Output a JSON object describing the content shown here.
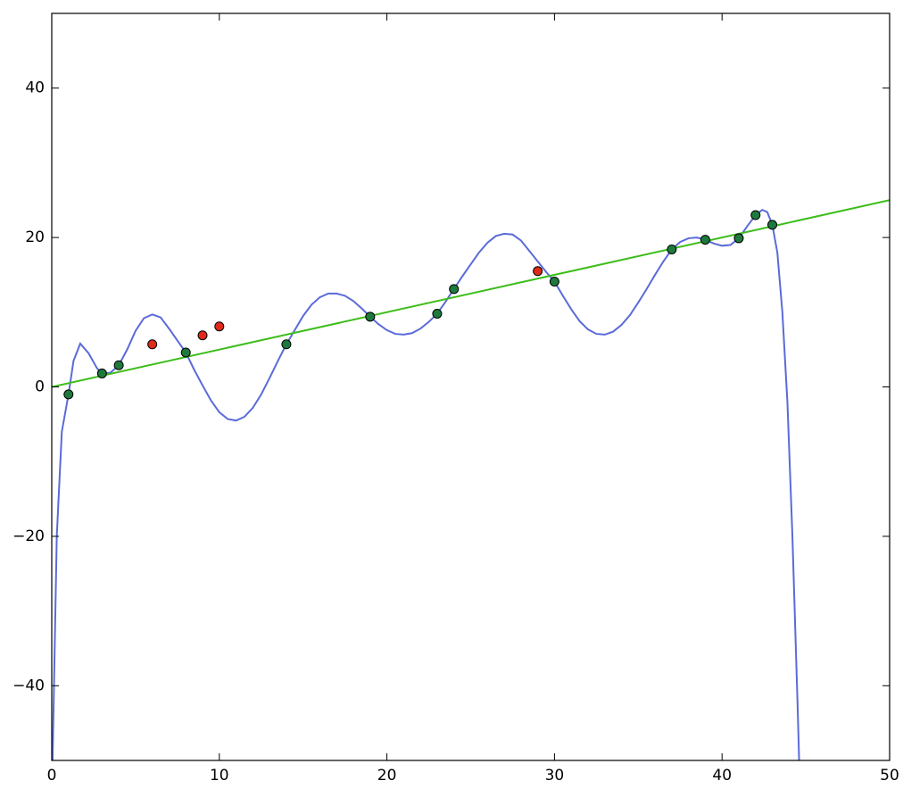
{
  "chart_data": {
    "type": "scatter",
    "xlim": [
      0,
      50
    ],
    "ylim": [
      -50,
      50
    ],
    "xticks": [
      0,
      10,
      20,
      30,
      40,
      50
    ],
    "yticks": [
      {
        "value": -40,
        "label": "−40"
      },
      {
        "value": -20,
        "label": "−20"
      },
      0,
      20,
      40
    ],
    "series": [
      {
        "type": "line",
        "color": "#5a6bd8",
        "x": [
          0.05,
          0.3,
          0.6,
          1,
          1.3,
          1.7,
          2.2,
          2.7,
          3,
          3.5,
          4,
          4.5,
          5,
          5.5,
          6,
          6.5,
          7,
          7.5,
          8,
          8.5,
          9,
          9.5,
          10,
          10.5,
          11,
          11.5,
          12,
          12.5,
          13,
          13.5,
          14,
          14.5,
          15,
          15.5,
          16,
          16.5,
          17,
          17.5,
          18,
          18.5,
          19,
          19.5,
          20,
          20.5,
          21,
          21.5,
          22,
          22.5,
          23,
          23.5,
          24,
          24.5,
          25,
          25.5,
          26,
          26.5,
          27,
          27.5,
          28,
          28.5,
          29,
          29.5,
          30,
          30.5,
          31,
          31.5,
          32,
          32.5,
          33,
          33.5,
          34,
          34.5,
          35,
          35.5,
          36,
          36.5,
          37,
          37.5,
          38,
          38.5,
          39,
          39.5,
          40,
          40.5,
          41,
          41.5,
          42,
          42.4,
          42.7,
          43,
          43.3,
          43.6,
          43.9,
          44.2,
          44.5,
          44.6
        ],
        "values": [
          -50,
          -20,
          -6,
          -1,
          3.5,
          5.8,
          4.5,
          2.5,
          1.8,
          1.9,
          2.9,
          5,
          7.5,
          9.2,
          9.7,
          9.3,
          7.8,
          6.2,
          4.6,
          2.3,
          0.2,
          -1.8,
          -3.4,
          -4.3,
          -4.5,
          -4,
          -2.8,
          -1,
          1.2,
          3.5,
          5.7,
          7.6,
          9.5,
          11,
          12,
          12.5,
          12.5,
          12.2,
          11.5,
          10.5,
          9.4,
          8.4,
          7.6,
          7.1,
          7,
          7.2,
          7.8,
          8.7,
          9.8,
          11.4,
          13.1,
          14.8,
          16.4,
          18,
          19.3,
          20.2,
          20.5,
          20.4,
          19.6,
          18.2,
          16.8,
          15.4,
          14.1,
          12.2,
          10.4,
          8.8,
          7.7,
          7.1,
          7,
          7.4,
          8.3,
          9.6,
          11.3,
          13.1,
          15,
          16.8,
          18.4,
          19.4,
          19.9,
          20,
          19.7,
          19.2,
          18.9,
          19,
          19.9,
          21.5,
          23,
          23.7,
          23.4,
          21.7,
          18,
          10,
          -2,
          -20,
          -42,
          -50
        ]
      },
      {
        "type": "line",
        "color": "#3dbd1a",
        "x": [
          0,
          50
        ],
        "values": [
          0,
          25
        ]
      },
      {
        "type": "scatter",
        "color": "#1e7a3c",
        "x": [
          1,
          3,
          4,
          8,
          14,
          19,
          23,
          24,
          30,
          37,
          39,
          41,
          42,
          43
        ],
        "values": [
          -1,
          1.8,
          2.9,
          4.6,
          5.7,
          9.4,
          9.8,
          13.1,
          14.1,
          18.4,
          19.7,
          19.9,
          23,
          21.7
        ]
      },
      {
        "type": "scatter",
        "color": "#dd2a1a",
        "x": [
          6,
          9,
          10,
          29
        ],
        "values": [
          5.7,
          6.9,
          8.1,
          15.5
        ]
      }
    ]
  }
}
